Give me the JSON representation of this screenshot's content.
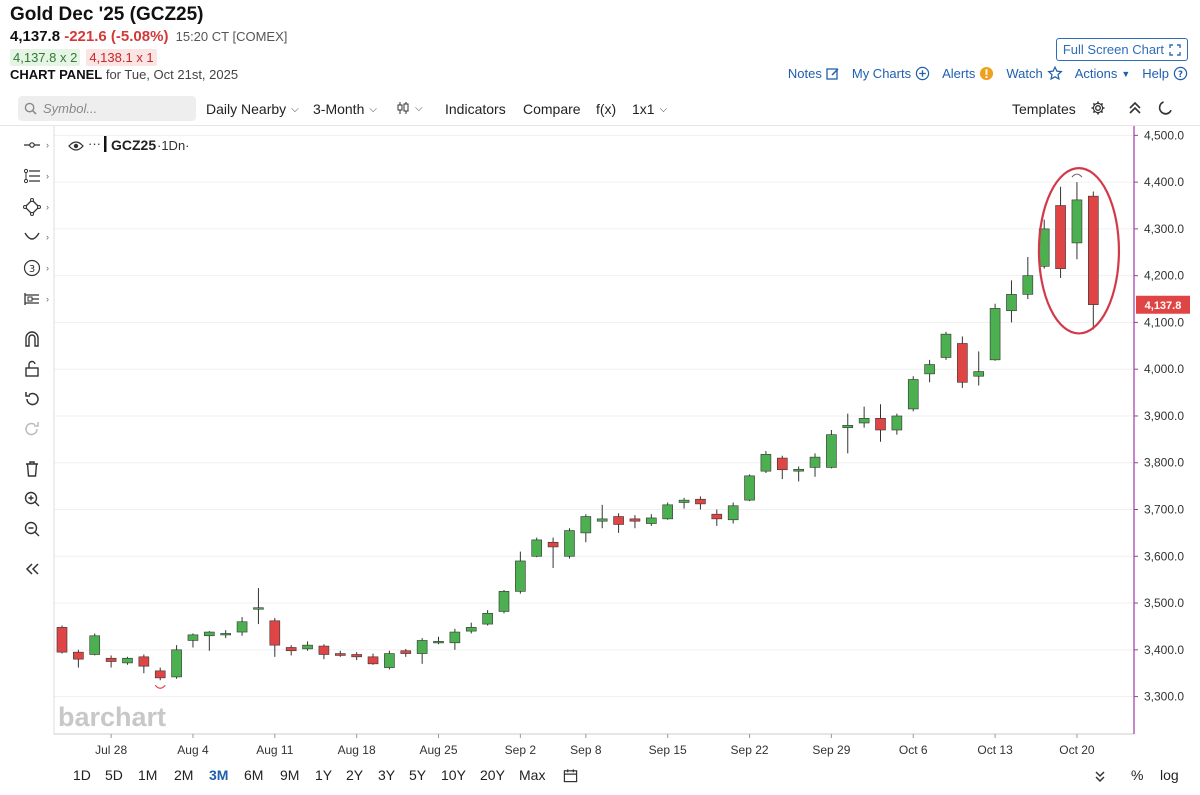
{
  "header": {
    "title": "Gold Dec '25 (GCZ25)",
    "last": "4,137.8",
    "change": "-221.6 (-5.08%)",
    "timestamp": "15:20 CT [COMEX]",
    "bid": "4,137.8 x 2",
    "ask": "4,138.1 x 1",
    "panel_label": "CHART PANEL",
    "panel_date": "for Tue, Oct 21st, 2025",
    "fullscreen_label": "Full Screen Chart"
  },
  "topmenu": {
    "notes": "Notes",
    "mycharts": "My Charts",
    "alerts": "Alerts",
    "watch": "Watch",
    "actions": "Actions",
    "help": "Help"
  },
  "toolbar": {
    "search_placeholder": "Symbol...",
    "daily": "Daily Nearby",
    "period": "3-Month",
    "indicators": "Indicators",
    "compare": "Compare",
    "fx": "f(x)",
    "layout": "1x1",
    "templates": "Templates"
  },
  "legend": {
    "symbol": "GCZ25",
    "interval": "·1Dn·",
    "dots": "···"
  },
  "watermark": "barchart",
  "ranges": [
    "1D",
    "5D",
    "1M",
    "2M",
    "3M",
    "6M",
    "9M",
    "1Y",
    "2Y",
    "3Y",
    "5Y",
    "10Y",
    "20Y",
    "Max"
  ],
  "active_range": "3M",
  "bottom_right": {
    "pct": "%",
    "log": "log"
  },
  "colors": {
    "up": "#4caf50",
    "down": "#e04545",
    "accent": "#1f5fae",
    "axis": "#a23aa8",
    "highlight": "#d23a4a"
  },
  "chart_data": {
    "type": "candlestick",
    "ylim": [
      3220,
      4520
    ],
    "yticks": [
      3300,
      3400,
      3500,
      3600,
      3700,
      3800,
      3900,
      4000,
      4100,
      4200,
      4300,
      4400,
      4500
    ],
    "ytick_labels": [
      "3,300.0",
      "3,400.0",
      "3,500.0",
      "3,600.0",
      "3,700.0",
      "3,800.0",
      "3,900.0",
      "4,000.0",
      "4,100.0",
      "4,200.0",
      "4,300.0",
      "4,400.0",
      "4,500.0"
    ],
    "xtick_labels": [
      {
        "label": "Jul 28",
        "index": 3
      },
      {
        "label": "Aug 4",
        "index": 8
      },
      {
        "label": "Aug 11",
        "index": 13
      },
      {
        "label": "Aug 18",
        "index": 18
      },
      {
        "label": "Aug 25",
        "index": 23
      },
      {
        "label": "Sep 2",
        "index": 28
      },
      {
        "label": "Sep 8",
        "index": 32
      },
      {
        "label": "Sep 15",
        "index": 37
      },
      {
        "label": "Sep 22",
        "index": 42
      },
      {
        "label": "Sep 29",
        "index": 47
      },
      {
        "label": "Oct 6",
        "index": 52
      },
      {
        "label": "Oct 13",
        "index": 57
      },
      {
        "label": "Oct 20",
        "index": 62
      }
    ],
    "last_price": 4137.8,
    "last_price_label": "4,137.8",
    "candles": [
      {
        "o": 3448,
        "h": 3452,
        "l": 3392,
        "c": 3395
      },
      {
        "o": 3395,
        "h": 3400,
        "l": 3362,
        "c": 3380
      },
      {
        "o": 3390,
        "h": 3435,
        "l": 3388,
        "c": 3430
      },
      {
        "o": 3382,
        "h": 3388,
        "l": 3362,
        "c": 3375
      },
      {
        "o": 3372,
        "h": 3385,
        "l": 3368,
        "c": 3382
      },
      {
        "o": 3385,
        "h": 3390,
        "l": 3350,
        "c": 3365
      },
      {
        "o": 3355,
        "h": 3362,
        "l": 3335,
        "c": 3340
      },
      {
        "o": 3342,
        "h": 3410,
        "l": 3338,
        "c": 3400
      },
      {
        "o": 3420,
        "h": 3435,
        "l": 3405,
        "c": 3432
      },
      {
        "o": 3430,
        "h": 3440,
        "l": 3398,
        "c": 3438
      },
      {
        "o": 3435,
        "h": 3442,
        "l": 3425,
        "c": 3435
      },
      {
        "o": 3438,
        "h": 3470,
        "l": 3430,
        "c": 3460
      },
      {
        "o": 3490,
        "h": 3532,
        "l": 3455,
        "c": 3490
      },
      {
        "o": 3462,
        "h": 3468,
        "l": 3385,
        "c": 3410
      },
      {
        "o": 3405,
        "h": 3410,
        "l": 3388,
        "c": 3398
      },
      {
        "o": 3402,
        "h": 3418,
        "l": 3398,
        "c": 3410
      },
      {
        "o": 3408,
        "h": 3412,
        "l": 3380,
        "c": 3390
      },
      {
        "o": 3392,
        "h": 3398,
        "l": 3385,
        "c": 3388
      },
      {
        "o": 3390,
        "h": 3395,
        "l": 3378,
        "c": 3385
      },
      {
        "o": 3385,
        "h": 3392,
        "l": 3368,
        "c": 3370
      },
      {
        "o": 3362,
        "h": 3398,
        "l": 3358,
        "c": 3392
      },
      {
        "o": 3398,
        "h": 3402,
        "l": 3385,
        "c": 3392
      },
      {
        "o": 3392,
        "h": 3425,
        "l": 3370,
        "c": 3420
      },
      {
        "o": 3418,
        "h": 3428,
        "l": 3412,
        "c": 3418
      },
      {
        "o": 3415,
        "h": 3445,
        "l": 3400,
        "c": 3438
      },
      {
        "o": 3440,
        "h": 3458,
        "l": 3435,
        "c": 3448
      },
      {
        "o": 3455,
        "h": 3485,
        "l": 3452,
        "c": 3478
      },
      {
        "o": 3482,
        "h": 3528,
        "l": 3478,
        "c": 3525
      },
      {
        "o": 3525,
        "h": 3610,
        "l": 3520,
        "c": 3590
      },
      {
        "o": 3600,
        "h": 3640,
        "l": 3598,
        "c": 3635
      },
      {
        "o": 3630,
        "h": 3640,
        "l": 3575,
        "c": 3620
      },
      {
        "o": 3600,
        "h": 3660,
        "l": 3595,
        "c": 3655
      },
      {
        "o": 3650,
        "h": 3690,
        "l": 3630,
        "c": 3685
      },
      {
        "o": 3675,
        "h": 3710,
        "l": 3660,
        "c": 3680
      },
      {
        "o": 3685,
        "h": 3692,
        "l": 3650,
        "c": 3668
      },
      {
        "o": 3680,
        "h": 3688,
        "l": 3660,
        "c": 3675
      },
      {
        "o": 3670,
        "h": 3690,
        "l": 3665,
        "c": 3682
      },
      {
        "o": 3680,
        "h": 3715,
        "l": 3678,
        "c": 3710
      },
      {
        "o": 3715,
        "h": 3725,
        "l": 3702,
        "c": 3720
      },
      {
        "o": 3722,
        "h": 3728,
        "l": 3700,
        "c": 3712
      },
      {
        "o": 3690,
        "h": 3700,
        "l": 3665,
        "c": 3680
      },
      {
        "o": 3678,
        "h": 3715,
        "l": 3670,
        "c": 3708
      },
      {
        "o": 3720,
        "h": 3775,
        "l": 3718,
        "c": 3772
      },
      {
        "o": 3782,
        "h": 3825,
        "l": 3778,
        "c": 3818
      },
      {
        "o": 3810,
        "h": 3815,
        "l": 3765,
        "c": 3785
      },
      {
        "o": 3782,
        "h": 3792,
        "l": 3760,
        "c": 3786
      },
      {
        "o": 3790,
        "h": 3820,
        "l": 3770,
        "c": 3812
      },
      {
        "o": 3790,
        "h": 3870,
        "l": 3788,
        "c": 3860
      },
      {
        "o": 3875,
        "h": 3905,
        "l": 3820,
        "c": 3880
      },
      {
        "o": 3885,
        "h": 3920,
        "l": 3875,
        "c": 3895
      },
      {
        "o": 3895,
        "h": 3925,
        "l": 3845,
        "c": 3870
      },
      {
        "o": 3870,
        "h": 3905,
        "l": 3860,
        "c": 3900
      },
      {
        "o": 3915,
        "h": 3985,
        "l": 3910,
        "c": 3978
      },
      {
        "o": 3990,
        "h": 4020,
        "l": 3972,
        "c": 4010
      },
      {
        "o": 4025,
        "h": 4080,
        "l": 4020,
        "c": 4075
      },
      {
        "o": 4055,
        "h": 4070,
        "l": 3960,
        "c": 3972
      },
      {
        "o": 3985,
        "h": 4038,
        "l": 3965,
        "c": 3995
      },
      {
        "o": 4020,
        "h": 4140,
        "l": 4018,
        "c": 4130
      },
      {
        "o": 4125,
        "h": 4190,
        "l": 4100,
        "c": 4160
      },
      {
        "o": 4160,
        "h": 4240,
        "l": 4150,
        "c": 4200
      },
      {
        "o": 4220,
        "h": 4320,
        "l": 4215,
        "c": 4300
      },
      {
        "o": 4350,
        "h": 4390,
        "l": 4195,
        "c": 4215
      },
      {
        "o": 4270,
        "h": 4400,
        "l": 4235,
        "c": 4362
      },
      {
        "o": 4370,
        "h": 4380,
        "l": 4085,
        "c": 4138
      }
    ]
  }
}
